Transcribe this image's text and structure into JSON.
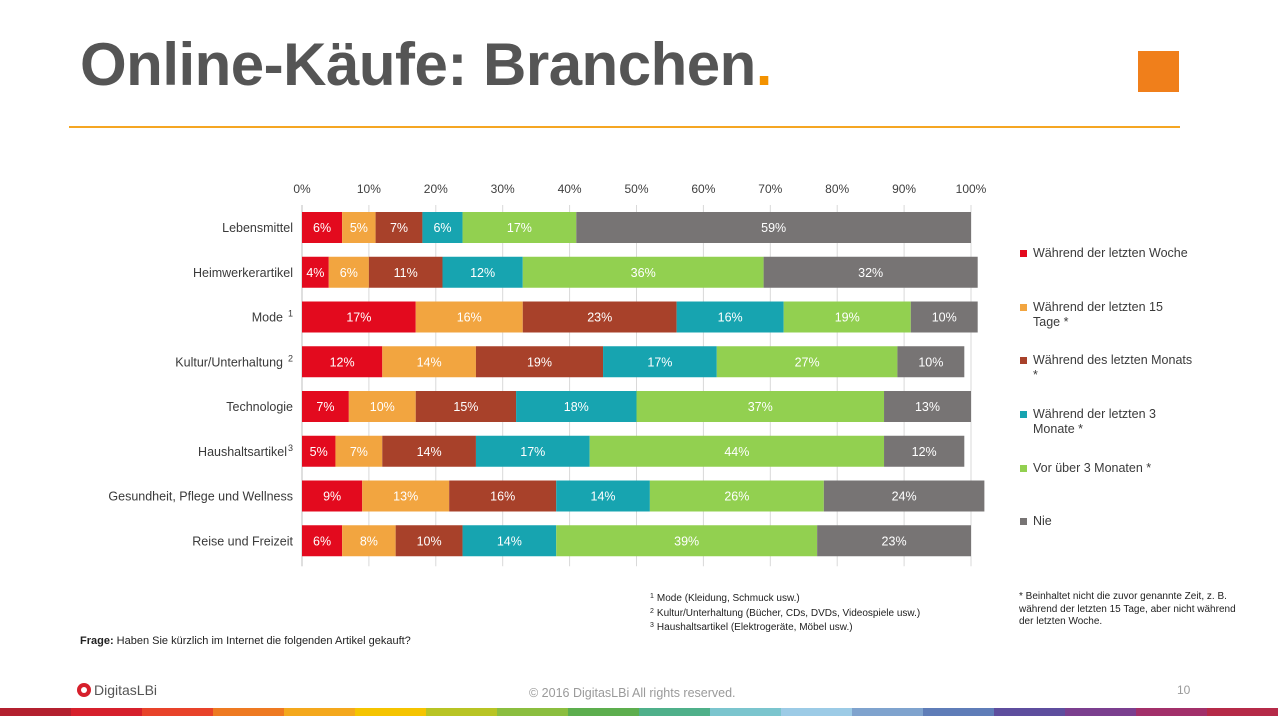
{
  "slide": {
    "title": "Online-Käufe: Branchen",
    "title_dot": ".",
    "question_label": "Frage:",
    "question_text": " Haben Sie kürzlich im Internet die folgenden Artikel gekauft?",
    "footnotes": [
      {
        "num": "1",
        "text": "Mode (Kleidung, Schmuck usw.)"
      },
      {
        "num": "2",
        "text": "Kultur/Unterhaltung (Bücher, CDs, DVDs, Videospiele usw.)"
      },
      {
        "num": "3",
        "text": "Haushaltsartikel (Elektrogeräte, Möbel usw.)"
      }
    ],
    "asterisk_note": "* Beinhaltet nicht die zuvor genannte Zeit, z. B. während der letzten 15 Tage, aber nicht während der letzten Woche.",
    "logo_text": "DigitasLBi",
    "copyright": "© 2016 DigitasLBi  All rights reserved.",
    "page_number": "10",
    "colors": {
      "accent": "#F39200",
      "square": "#F07F1B",
      "rainbow": [
        "#B3202F",
        "#D6202C",
        "#E8432A",
        "#EE7A22",
        "#F4A81D",
        "#F5C400",
        "#B8C424",
        "#8BBE3F",
        "#5DAE4E",
        "#4FB08A",
        "#7BC5CE",
        "#9CCBE6",
        "#7FA3CE",
        "#5F7DB8",
        "#5E4E9E",
        "#7B3F8F",
        "#A2306A",
        "#B52A48"
      ]
    }
  },
  "chart_data": {
    "type": "bar",
    "orientation": "horizontal",
    "stacked": true,
    "xlim": [
      0,
      100
    ],
    "x_ticks": [
      "0%",
      "10%",
      "20%",
      "30%",
      "40%",
      "50%",
      "60%",
      "70%",
      "80%",
      "90%",
      "100%"
    ],
    "x_axis_position": "top",
    "grid": true,
    "legend_position": "right",
    "categories": [
      {
        "label": "Lebensmittel",
        "sup": ""
      },
      {
        "label": "Heimwerkerartikel",
        "sup": ""
      },
      {
        "label": "Mode",
        "sup": "1"
      },
      {
        "label": "Kultur/Unterhaltung",
        "sup": "2"
      },
      {
        "label": "Technologie",
        "sup": ""
      },
      {
        "label": "Haushaltsartikel",
        "sup": "3"
      },
      {
        "label": "Gesundheit, Pflege und Wellness",
        "sup": ""
      },
      {
        "label": "Reise und Freizeit",
        "sup": ""
      }
    ],
    "series": [
      {
        "name": "Während der letzten Woche",
        "color": "#E30A1E",
        "values": [
          6,
          4,
          17,
          12,
          7,
          5,
          9,
          6
        ],
        "labels": [
          "6%",
          "4%",
          "17%",
          "12%",
          "7%",
          "5%",
          "9%",
          "6%"
        ]
      },
      {
        "name": "Während der letzten 15 Tage *",
        "color": "#F2A540",
        "values": [
          5,
          6,
          16,
          14,
          10,
          7,
          13,
          8
        ],
        "labels": [
          "5%",
          "6%",
          "16%",
          "14%",
          "10%",
          "7%",
          "13%",
          "8%"
        ]
      },
      {
        "name": "Während des letzten Monats *",
        "color": "#A8412A",
        "values": [
          7,
          11,
          23,
          19,
          15,
          14,
          16,
          10
        ],
        "labels": [
          "7%",
          "11%",
          "23%",
          "19%",
          "15%",
          "14%",
          "16%",
          "10%"
        ]
      },
      {
        "name": "Während der letzten 3 Monate *",
        "color": "#17A4B0",
        "values": [
          6,
          12,
          16,
          17,
          18,
          17,
          14,
          14
        ],
        "labels": [
          "6%",
          "12%",
          "16%",
          "17%",
          "18%",
          "17%",
          "14%",
          "14%"
        ]
      },
      {
        "name": "Vor über 3 Monaten *",
        "color": "#92D050",
        "values": [
          17,
          36,
          19,
          27,
          37,
          44,
          26,
          39
        ],
        "labels": [
          "17%",
          "36%",
          "19%",
          "27%",
          "37%",
          "44%",
          "26%",
          "39%"
        ]
      },
      {
        "name": "Nie",
        "color": "#777474",
        "values": [
          59,
          32,
          10,
          10,
          13,
          12,
          24,
          23
        ],
        "labels": [
          "59%",
          "32%",
          "10%",
          "10%",
          "13%",
          "12%",
          "24%",
          "23%"
        ]
      }
    ]
  }
}
